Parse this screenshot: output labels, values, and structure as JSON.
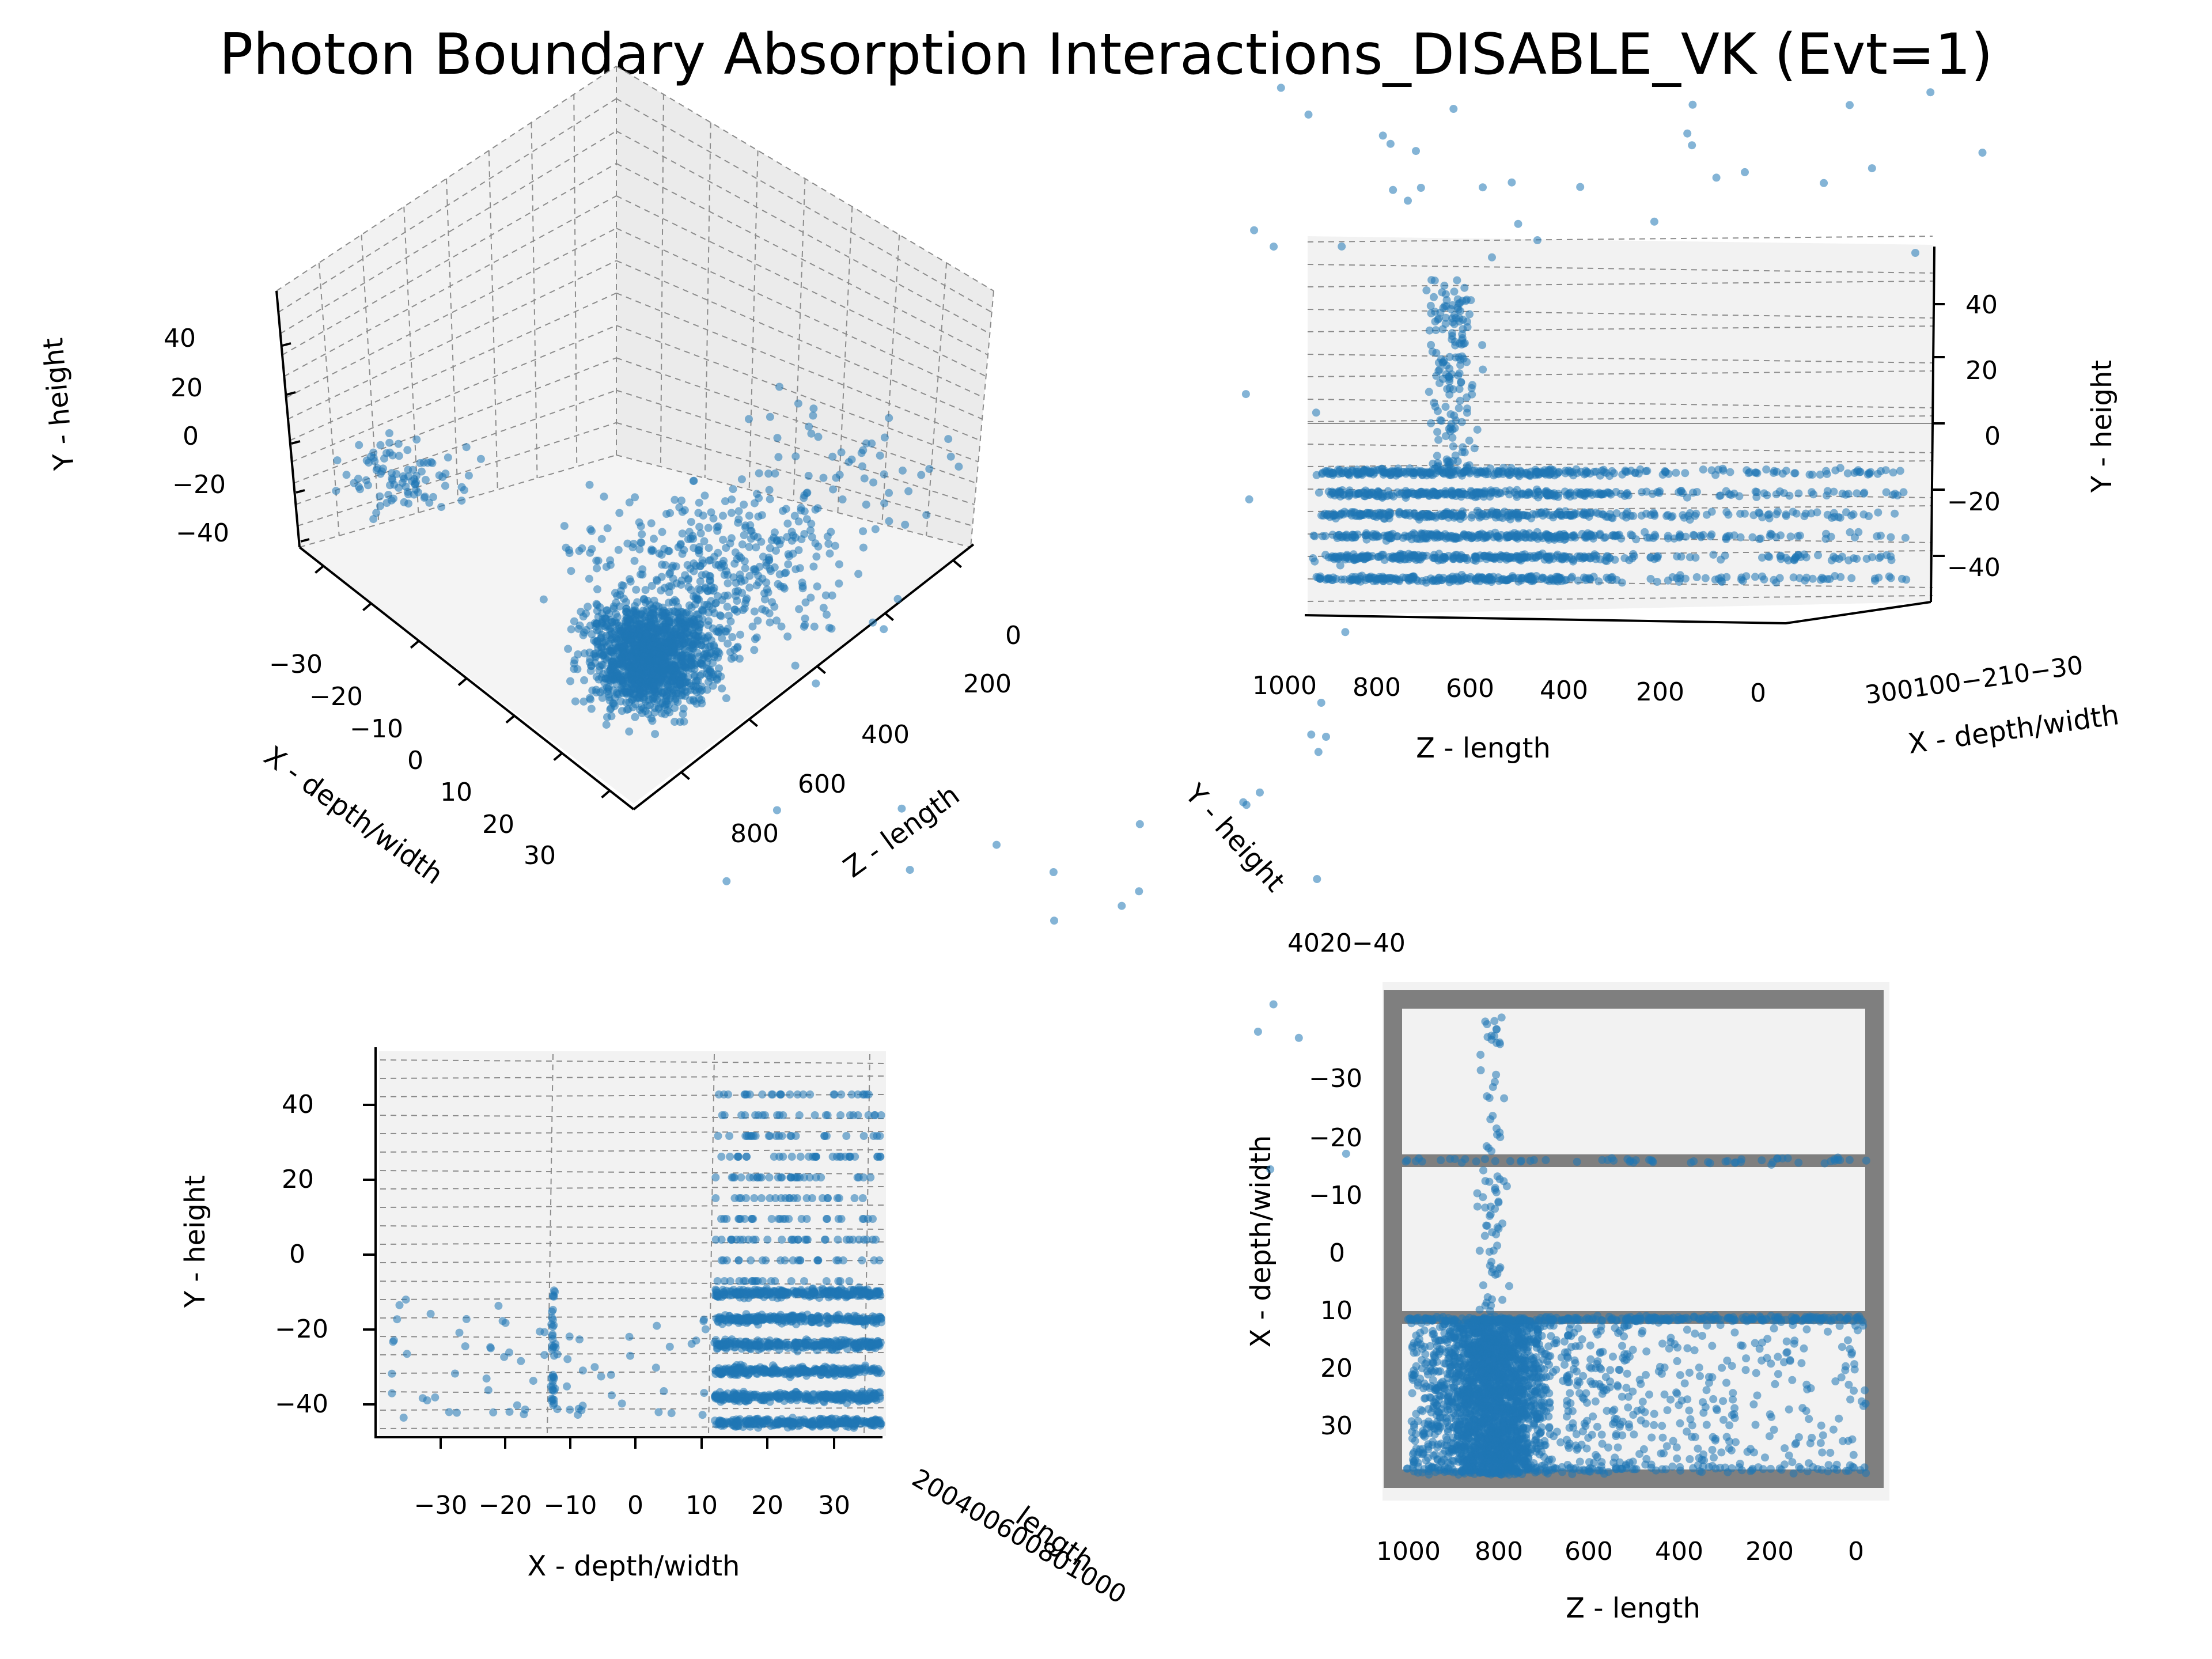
{
  "title": "Photon Boundary Absorption Interactions_DISABLE_VK (Evt=1)",
  "colors": {
    "points": "#1f77b4",
    "pane": "#f2f2f2",
    "grid": "#8c8c8c",
    "axis": "#000000"
  },
  "chart_data": [
    {
      "type": "scatter",
      "view": "3d-perspective",
      "xlabel": "X - depth/width",
      "ylabel": "Y - height",
      "zlabel": "Z - length",
      "x_ticks": [
        "−30",
        "−20",
        "−10",
        "0",
        "10",
        "20",
        "30"
      ],
      "y_ticks": [
        "40",
        "20",
        "0",
        "−20",
        "−40"
      ],
      "z_ticks": [
        "0",
        "200",
        "400",
        "600",
        "800"
      ],
      "xlim": [
        -37,
        37
      ],
      "ylim": [
        -50,
        50
      ],
      "zlim": [
        0,
        1000
      ],
      "grid": true
    },
    {
      "type": "scatter",
      "view": "3d-side (Z vs Y)",
      "xlabel": "Z - length",
      "ylabel": "Y - height",
      "depth_label": "X - depth/width",
      "x_ticks": [
        "1000",
        "800",
        "600",
        "400",
        "200",
        "0"
      ],
      "y_ticks": [
        "40",
        "20",
        "0",
        "−20",
        "−40"
      ],
      "depth_ticks": "300100−210−30",
      "xlim": [
        1000,
        0
      ],
      "ylim": [
        -50,
        50
      ],
      "grid": true
    },
    {
      "type": "scatter",
      "view": "3d-front (X vs Y)",
      "xlabel": "X - depth/width",
      "ylabel": "Y - height",
      "depth_label": "Z - length",
      "x_ticks": [
        "−30",
        "−20",
        "−10",
        "0",
        "10",
        "20",
        "30"
      ],
      "y_ticks": [
        "40",
        "20",
        "0",
        "−20",
        "−40"
      ],
      "depth_ticks": "200400600801000",
      "depth_axis_tail": "length",
      "xlim": [
        -37,
        37
      ],
      "ylim": [
        -50,
        50
      ],
      "grid": true
    },
    {
      "type": "scatter",
      "view": "3d-top (Z vs X)",
      "xlabel": "Z - length",
      "ylabel": "X - depth/width",
      "depth_label": "Y - height",
      "x_ticks": [
        "1000",
        "800",
        "600",
        "400",
        "200",
        "0"
      ],
      "y_ticks": [
        "−30",
        "−20",
        "−10",
        "0",
        "10",
        "20",
        "30"
      ],
      "depth_ticks": "4020−40",
      "xlim": [
        1000,
        0
      ],
      "ylim": [
        -37,
        37
      ],
      "grid": true
    }
  ]
}
